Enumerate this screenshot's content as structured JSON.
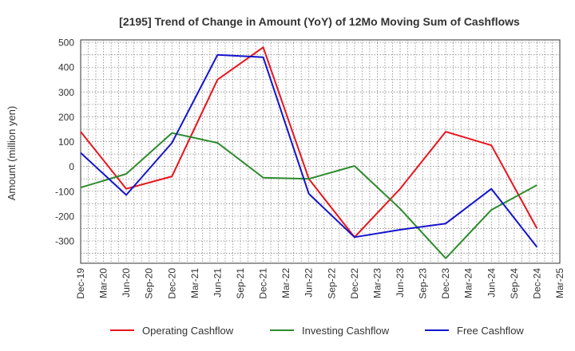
{
  "chart_data": {
    "type": "line",
    "title": "[2195]  Trend of Change in Amount (YoY) of 12Mo Moving Sum of Cashflows",
    "xlabel": "",
    "ylabel": "Amount (million yen)",
    "ylim": [
      -390,
      510
    ],
    "yticks": [
      500,
      400,
      300,
      200,
      100,
      0,
      -100,
      -200,
      -300
    ],
    "categories": [
      "Dec-19",
      "Mar-20",
      "Jun-20",
      "Sep-20",
      "Dec-20",
      "Mar-21",
      "Jun-21",
      "Sep-21",
      "Dec-21",
      "Mar-22",
      "Jun-22",
      "Sep-22",
      "Dec-22",
      "Mar-23",
      "Jun-23",
      "Sep-23",
      "Dec-23",
      "Mar-24",
      "Jun-24",
      "Sep-24",
      "Dec-24",
      "Mar-25"
    ],
    "series": [
      {
        "name": "Operating Cashflow",
        "color": "#e8141c",
        "points": [
          [
            0,
            140
          ],
          [
            2,
            -90
          ],
          [
            4,
            -40
          ],
          [
            6,
            350
          ],
          [
            8,
            480
          ],
          [
            10,
            -50
          ],
          [
            12,
            -285
          ],
          [
            14,
            -90
          ],
          [
            16,
            140
          ],
          [
            18,
            85
          ],
          [
            20,
            -250
          ]
        ]
      },
      {
        "name": "Investing Cashflow",
        "color": "#2e8b2e",
        "points": [
          [
            0,
            -85
          ],
          [
            2,
            -30
          ],
          [
            4,
            135
          ],
          [
            6,
            95
          ],
          [
            8,
            -45
          ],
          [
            10,
            -50
          ],
          [
            12,
            2
          ],
          [
            14,
            -170
          ],
          [
            16,
            -370
          ],
          [
            18,
            -175
          ],
          [
            20,
            -75
          ]
        ]
      },
      {
        "name": "Free Cashflow",
        "color": "#1414cc",
        "points": [
          [
            0,
            55
          ],
          [
            2,
            -115
          ],
          [
            4,
            95
          ],
          [
            6,
            450
          ],
          [
            8,
            440
          ],
          [
            10,
            -110
          ],
          [
            12,
            -285
          ],
          [
            14,
            -255
          ],
          [
            16,
            -230
          ],
          [
            18,
            -90
          ],
          [
            20,
            -325
          ]
        ]
      }
    ],
    "grid": true,
    "legend_position": "bottom"
  }
}
